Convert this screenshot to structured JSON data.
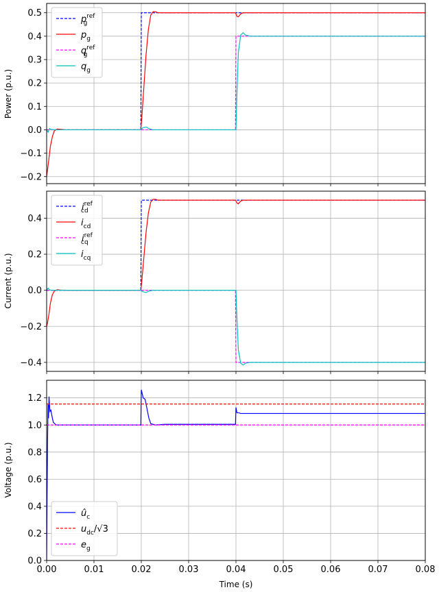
{
  "chart_data": [
    {
      "type": "line",
      "ylabel": "Power (p.u.)",
      "xlim": [
        0,
        0.08
      ],
      "ylim": [
        -0.23,
        0.54
      ],
      "yticks": [
        "−0.2",
        "−0.1",
        "0.0",
        "0.1",
        "0.2",
        "0.3",
        "0.4",
        "0.5"
      ],
      "ytick_values": [
        -0.2,
        -0.1,
        0.0,
        0.1,
        0.2,
        0.3,
        0.4,
        0.5
      ],
      "grid": true,
      "legend_position": "upper-left",
      "series": [
        {
          "name": "p_g^ref",
          "color": "#0000ff",
          "dash": true,
          "points": [
            [
              0,
              0
            ],
            [
              0.0199,
              0
            ],
            [
              0.02,
              0.5
            ],
            [
              0.08,
              0.5
            ]
          ]
        },
        {
          "name": "p_g",
          "color": "#ff0000",
          "dash": false,
          "points": [
            [
              0,
              -0.2
            ],
            [
              0.0002,
              -0.17
            ],
            [
              0.0005,
              -0.12
            ],
            [
              0.0008,
              -0.07
            ],
            [
              0.0012,
              -0.03
            ],
            [
              0.0016,
              -0.005
            ],
            [
              0.0022,
              0.003
            ],
            [
              0.003,
              0.002
            ],
            [
              0.004,
              0
            ],
            [
              0.0199,
              0
            ],
            [
              0.0201,
              0.05
            ],
            [
              0.0205,
              0.17
            ],
            [
              0.021,
              0.32
            ],
            [
              0.0215,
              0.43
            ],
            [
              0.022,
              0.49
            ],
            [
              0.0225,
              0.505
            ],
            [
              0.023,
              0.505
            ],
            [
              0.0235,
              0.5
            ],
            [
              0.0399,
              0.5
            ],
            [
              0.0402,
              0.485
            ],
            [
              0.0405,
              0.483
            ],
            [
              0.041,
              0.495
            ],
            [
              0.0415,
              0.5
            ],
            [
              0.08,
              0.5
            ]
          ]
        },
        {
          "name": "q_g^ref",
          "color": "#ff00ff",
          "dash": true,
          "points": [
            [
              0,
              0
            ],
            [
              0.0399,
              0
            ],
            [
              0.04,
              0.4
            ],
            [
              0.08,
              0.4
            ]
          ]
        },
        {
          "name": "q_g",
          "color": "#00bfbf",
          "dash": false,
          "points": [
            [
              0,
              0
            ],
            [
              0.0003,
              -0.01
            ],
            [
              0.0006,
              0.005
            ],
            [
              0.001,
              0.001
            ],
            [
              0.002,
              0
            ],
            [
              0.0199,
              0
            ],
            [
              0.0203,
              0.008
            ],
            [
              0.021,
              0.012
            ],
            [
              0.0217,
              0.004
            ],
            [
              0.0225,
              0
            ],
            [
              0.04,
              0
            ],
            [
              0.0402,
              0.15
            ],
            [
              0.0405,
              0.33
            ],
            [
              0.041,
              0.405
            ],
            [
              0.0415,
              0.415
            ],
            [
              0.042,
              0.405
            ],
            [
              0.043,
              0.4
            ],
            [
              0.08,
              0.4
            ]
          ]
        }
      ]
    },
    {
      "type": "line",
      "ylabel": "Current (p.u.)",
      "xlim": [
        0,
        0.08
      ],
      "ylim": [
        -0.45,
        0.55
      ],
      "yticks": [
        "−0.4",
        "−0.2",
        "0.0",
        "0.2",
        "0.4"
      ],
      "ytick_values": [
        -0.4,
        -0.2,
        0.0,
        0.2,
        0.4
      ],
      "grid": true,
      "legend_position": "upper-left",
      "series": [
        {
          "name": "i_cd^ref",
          "color": "#0000ff",
          "dash": true,
          "points": [
            [
              0,
              0
            ],
            [
              0.0199,
              0
            ],
            [
              0.02,
              0.5
            ],
            [
              0.08,
              0.5
            ]
          ]
        },
        {
          "name": "i_cd",
          "color": "#ff0000",
          "dash": false,
          "points": [
            [
              0,
              -0.2
            ],
            [
              0.0002,
              -0.18
            ],
            [
              0.0005,
              -0.13
            ],
            [
              0.0008,
              -0.07
            ],
            [
              0.0012,
              -0.025
            ],
            [
              0.0016,
              -0.005
            ],
            [
              0.0022,
              0.003
            ],
            [
              0.003,
              0.001
            ],
            [
              0.004,
              0
            ],
            [
              0.0199,
              0
            ],
            [
              0.0201,
              0.05
            ],
            [
              0.0205,
              0.17
            ],
            [
              0.021,
              0.32
            ],
            [
              0.0215,
              0.43
            ],
            [
              0.022,
              0.49
            ],
            [
              0.0225,
              0.505
            ],
            [
              0.023,
              0.505
            ],
            [
              0.0235,
              0.5
            ],
            [
              0.0399,
              0.5
            ],
            [
              0.0402,
              0.485
            ],
            [
              0.0405,
              0.48
            ],
            [
              0.041,
              0.495
            ],
            [
              0.0415,
              0.5
            ],
            [
              0.08,
              0.5
            ]
          ]
        },
        {
          "name": "i_cq^ref",
          "color": "#ff00ff",
          "dash": true,
          "points": [
            [
              0,
              0
            ],
            [
              0.0399,
              0
            ],
            [
              0.04,
              -0.4
            ],
            [
              0.08,
              -0.4
            ]
          ]
        },
        {
          "name": "i_cq",
          "color": "#00bfbf",
          "dash": false,
          "points": [
            [
              0,
              0
            ],
            [
              0.0003,
              0.012
            ],
            [
              0.0006,
              0.002
            ],
            [
              0.001,
              0
            ],
            [
              0.0199,
              0
            ],
            [
              0.0203,
              -0.008
            ],
            [
              0.021,
              -0.012
            ],
            [
              0.0217,
              -0.004
            ],
            [
              0.0225,
              0
            ],
            [
              0.04,
              0
            ],
            [
              0.0402,
              -0.15
            ],
            [
              0.0405,
              -0.33
            ],
            [
              0.041,
              -0.405
            ],
            [
              0.0415,
              -0.415
            ],
            [
              0.042,
              -0.405
            ],
            [
              0.043,
              -0.4
            ],
            [
              0.08,
              -0.4
            ]
          ]
        }
      ]
    },
    {
      "type": "line",
      "ylabel": "Voltage (p.u.)",
      "xlabel": "Time (s)",
      "xlim": [
        0,
        0.08
      ],
      "ylim": [
        0,
        1.33
      ],
      "yticks": [
        "0.0",
        "0.2",
        "0.4",
        "0.6",
        "0.8",
        "1.0",
        "1.2"
      ],
      "ytick_values": [
        0,
        0.2,
        0.4,
        0.6,
        0.8,
        1.0,
        1.2
      ],
      "xticks": [
        "0.00",
        "0.01",
        "0.02",
        "0.03",
        "0.04",
        "0.05",
        "0.06",
        "0.07",
        "0.08"
      ],
      "xtick_values": [
        0,
        0.01,
        0.02,
        0.03,
        0.04,
        0.05,
        0.06,
        0.07,
        0.08
      ],
      "grid": true,
      "legend_position": "lower-left",
      "series": [
        {
          "name": "û_c",
          "color": "#0000ff",
          "dash": false,
          "points": [
            [
              0,
              0
            ],
            [
              0.0001,
              0.5
            ],
            [
              0.0002,
              0.9
            ],
            [
              0.0003,
              1.15
            ],
            [
              0.0004,
              1.05
            ],
            [
              0.0005,
              1.21
            ],
            [
              0.0007,
              1.1
            ],
            [
              0.0009,
              1.11
            ],
            [
              0.0011,
              1.07
            ],
            [
              0.0014,
              1.02
            ],
            [
              0.002,
              1.0
            ],
            [
              0.0199,
              1.0
            ],
            [
              0.02,
              1.26
            ],
            [
              0.0204,
              1.2
            ],
            [
              0.0208,
              1.19
            ],
            [
              0.0212,
              1.12
            ],
            [
              0.0216,
              1.05
            ],
            [
              0.022,
              1.01
            ],
            [
              0.023,
              1.0
            ],
            [
              0.025,
              1.005
            ],
            [
              0.0399,
              1.005
            ],
            [
              0.04,
              1.13
            ],
            [
              0.0402,
              1.09
            ],
            [
              0.0406,
              1.09
            ],
            [
              0.041,
              1.085
            ],
            [
              0.08,
              1.085
            ]
          ]
        },
        {
          "name": "u_dc/√3",
          "color": "#ff0000",
          "dash": true,
          "points": [
            [
              0,
              1.155
            ],
            [
              0.08,
              1.155
            ]
          ]
        },
        {
          "name": "e_g",
          "color": "#ff00ff",
          "dash": true,
          "points": [
            [
              0,
              1.0
            ],
            [
              0.08,
              1.0
            ]
          ]
        }
      ]
    }
  ]
}
